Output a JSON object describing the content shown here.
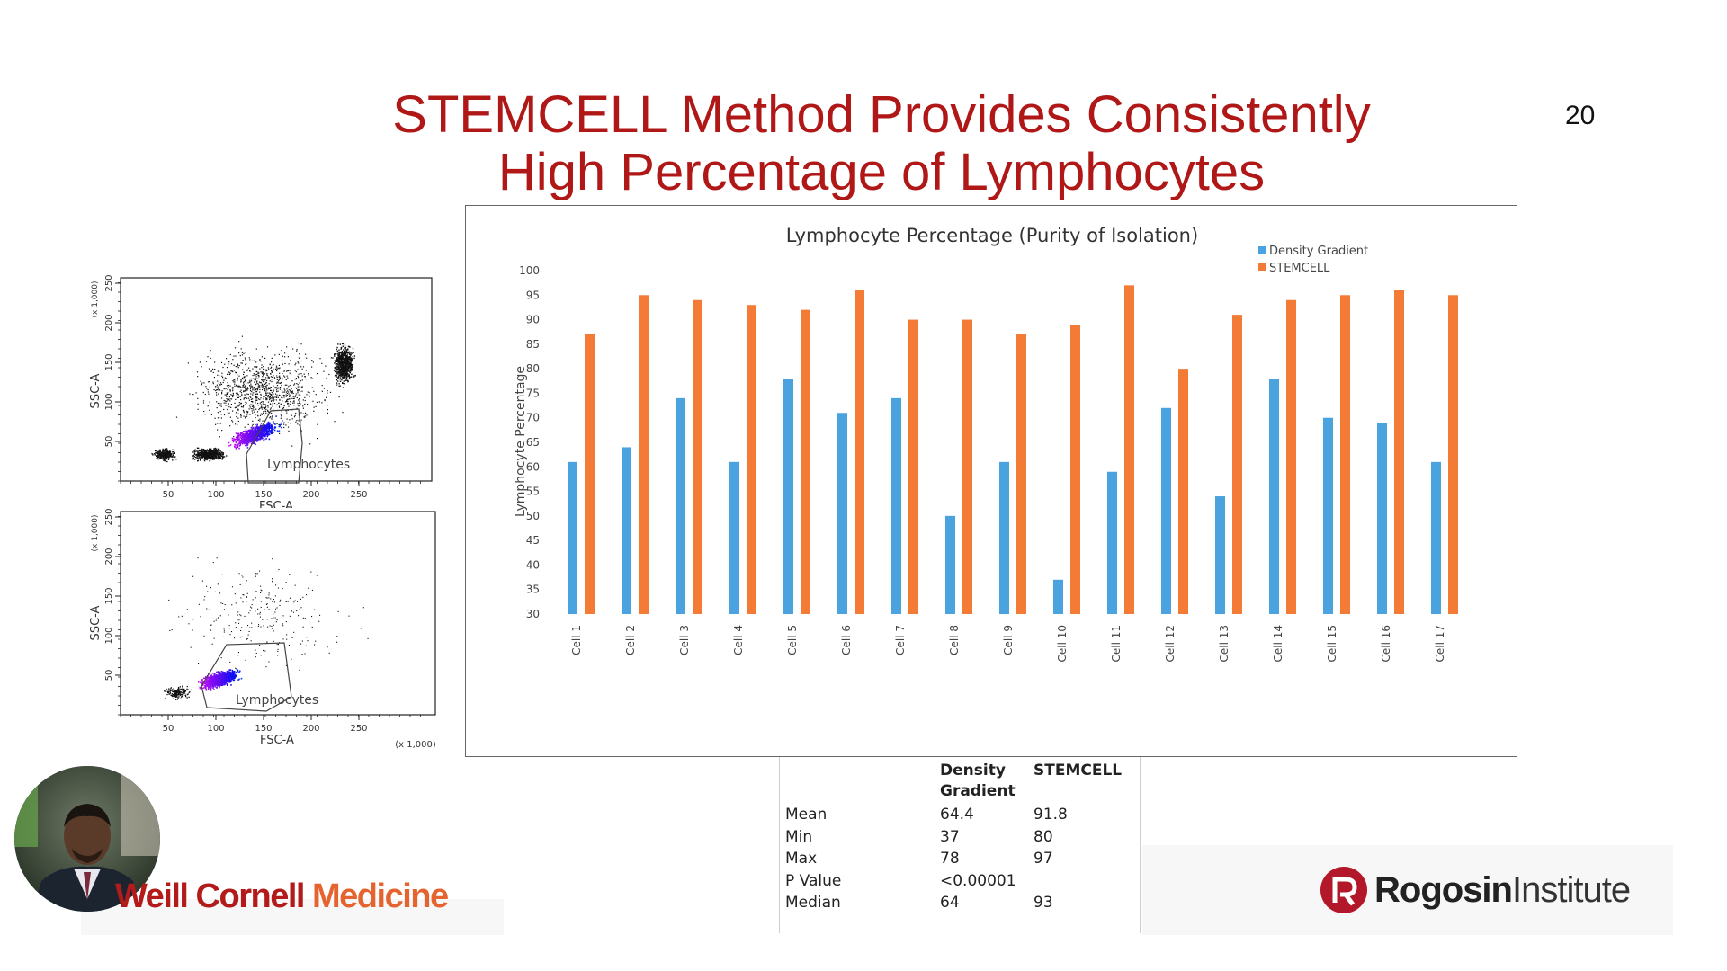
{
  "slide": {
    "title_line1": "STEMCELL Method Provides Consistently",
    "title_line2": "High Percentage of Lymphocytes",
    "number": "20"
  },
  "colors": {
    "title": "#b01818",
    "density_gradient": "#4aa3df",
    "stemcell": "#f47b35"
  },
  "chart_data": {
    "type": "bar",
    "title": "Lymphocyte Percentage (Purity of Isolation)",
    "ylabel": "Lymphocyte Percentage",
    "xlabel": "",
    "ylim": [
      30,
      100
    ],
    "yticks": [
      30,
      35,
      40,
      45,
      50,
      55,
      60,
      65,
      70,
      75,
      80,
      85,
      90,
      95,
      100
    ],
    "legend_position": "top-right",
    "categories": [
      "Cell 1",
      "Cell 2",
      "Cell 3",
      "Cell 4",
      "Cell 5",
      "Cell 6",
      "Cell 7",
      "Cell 8",
      "Cell 9",
      "Cell 10",
      "Cell 11",
      "Cell 12",
      "Cell 13",
      "Cell 14",
      "Cell 15",
      "Cell 16",
      "Cell 17"
    ],
    "series": [
      {
        "name": "Density Gradient",
        "color": "#4aa3df",
        "values": [
          61,
          64,
          74,
          61,
          78,
          71,
          74,
          50,
          61,
          37,
          59,
          72,
          54,
          78,
          70,
          69,
          61
        ]
      },
      {
        "name": "STEMCELL",
        "color": "#f47b35",
        "values": [
          87,
          95,
          94,
          93,
          92,
          96,
          90,
          90,
          87,
          89,
          97,
          80,
          91,
          94,
          95,
          96,
          95
        ]
      }
    ]
  },
  "flow_plots": [
    {
      "ylabel": "SSC-A",
      "xlabel": "FSC-A",
      "yscale": "(x 1,000)",
      "xscale": "",
      "gate_label": "Lymphocytes",
      "xticks": [
        "50",
        "100",
        "150",
        "200",
        "250"
      ],
      "yticks": [
        "50",
        "100",
        "150",
        "200",
        "250"
      ]
    },
    {
      "ylabel": "SSC-A",
      "xlabel": "FSC-A",
      "yscale": "(x 1,000)",
      "xscale": "(x 1,000)",
      "gate_label": "Lymphocytes",
      "xticks": [
        "50",
        "100",
        "150",
        "200",
        "250"
      ],
      "yticks": [
        "50",
        "100",
        "150",
        "200",
        "250"
      ]
    }
  ],
  "stats_table": {
    "headers": [
      "",
      "Density\nGradient",
      "STEMCELL"
    ],
    "rows": [
      {
        "label": "Mean",
        "density": "64.4",
        "stemcell": "91.8"
      },
      {
        "label": "Min",
        "density": "37",
        "stemcell": "80"
      },
      {
        "label": "Max",
        "density": "78",
        "stemcell": "97"
      },
      {
        "label": "P Value",
        "density": "<0.00001",
        "stemcell": ""
      },
      {
        "label": "Median",
        "density": "64",
        "stemcell": "93"
      }
    ]
  },
  "logos": {
    "wcm_part1": "Weill Cornell",
    "wcm_part2": "Medicine",
    "rogosin_part1": "Rogosin",
    "rogosin_part2": "Institute"
  }
}
